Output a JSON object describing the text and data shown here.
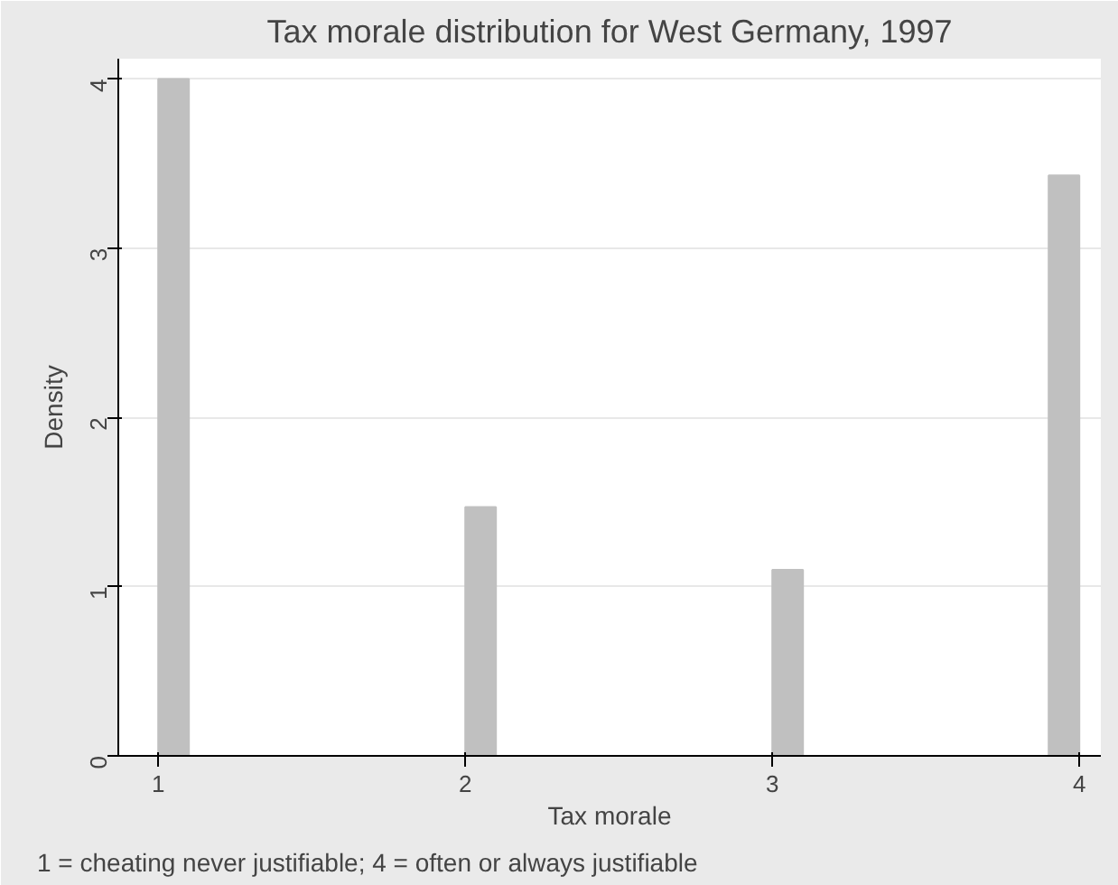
{
  "chart_data": {
    "type": "histogram",
    "title": "Tax morale distribution for West Germany, 1997",
    "xlabel": "Tax morale",
    "ylabel": "Density",
    "annotations": [
      "1 = cheating never justifiable; 4 = often or always justifiable"
    ],
    "bins": [
      1.0,
      1.1,
      1.2,
      1.3,
      1.4,
      1.5,
      1.6,
      1.7,
      1.8,
      1.9,
      2.0,
      2.1,
      2.2,
      2.3,
      2.4,
      2.5,
      2.6,
      2.7,
      2.8,
      2.9,
      3.0,
      3.1,
      3.2,
      3.3,
      3.4,
      3.5,
      3.6,
      3.7,
      3.8,
      3.9,
      4.0
    ],
    "values": [
      4.0,
      0,
      0,
      0,
      0,
      0,
      0,
      0,
      0,
      0,
      1.47,
      0,
      0,
      0,
      0,
      0,
      0,
      0,
      0,
      0,
      1.1,
      0,
      0,
      0,
      0,
      0,
      0,
      0,
      0,
      3.43
    ],
    "color": "#c0c0c0",
    "xlim": [
      0.87,
      4.07
    ],
    "ylim": [
      0,
      4.12
    ],
    "xticks": [
      1,
      2,
      3,
      4
    ],
    "yticks": [
      0,
      1,
      2,
      3,
      4
    ],
    "grid": "y"
  }
}
